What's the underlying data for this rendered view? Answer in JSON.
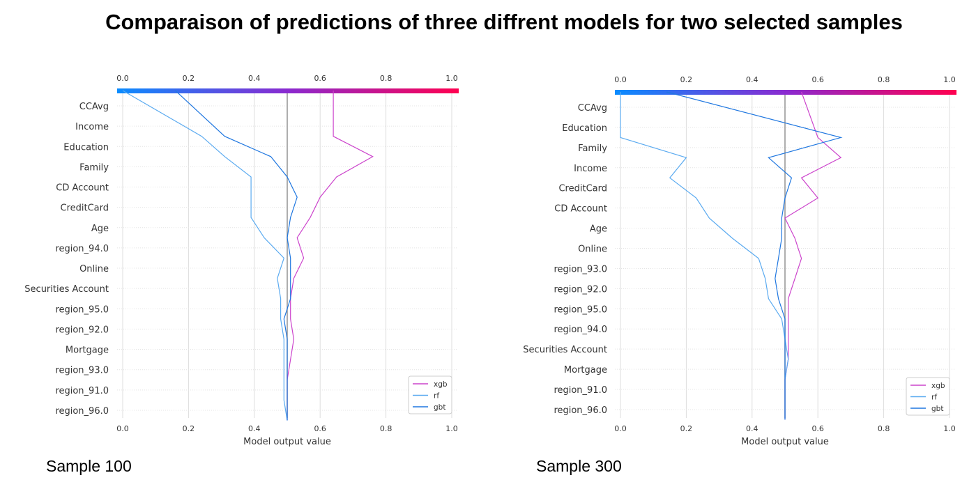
{
  "title": "Comparaison of predictions of three diffrent models for two selected samples",
  "samples": [
    {
      "label": "Sample 100"
    },
    {
      "label": "Sample 300"
    }
  ],
  "colors": {
    "xgb": "#cc44cc",
    "rf": "#5aaaf0",
    "gbt": "#1f77e0",
    "base_line": "#999999",
    "grid": "#dddddd",
    "colorbar_start": "#0a8cff",
    "colorbar_mid": "#8a2ad0",
    "colorbar_end": "#ff0050"
  },
  "chart_data": [
    {
      "type": "line",
      "subtype": "decision-plot",
      "xlabel": "Model output value",
      "xlim": [
        0.0,
        1.0
      ],
      "xticks": [
        "0.0",
        "0.2",
        "0.4",
        "0.6",
        "0.8",
        "1.0"
      ],
      "base_value": 0.5,
      "features": [
        "CCAvg",
        "Income",
        "Education",
        "Family",
        "CD Account",
        "CreditCard",
        "Age",
        "region_94.0",
        "Online",
        "Securities Account",
        "region_95.0",
        "region_92.0",
        "Mortgage",
        "region_93.0",
        "region_91.0",
        "region_96.0"
      ],
      "legend": [
        "xgb",
        "rf",
        "gbt"
      ],
      "legend_position": "lower-right",
      "series": [
        {
          "name": "xgb",
          "values": [
            0.5,
            0.5,
            0.5,
            0.5,
            0.51,
            0.52,
            0.51,
            0.51,
            0.52,
            0.55,
            0.53,
            0.57,
            0.6,
            0.65,
            0.76,
            0.64,
            0.64
          ]
        },
        {
          "name": "rf",
          "values": [
            0.5,
            0.5,
            0.49,
            0.49,
            0.49,
            0.49,
            0.48,
            0.48,
            0.47,
            0.49,
            0.43,
            0.39,
            0.39,
            0.39,
            0.31,
            0.24,
            0.0
          ]
        },
        {
          "name": "gbt",
          "values": [
            0.5,
            0.5,
            0.5,
            0.5,
            0.5,
            0.5,
            0.49,
            0.51,
            0.51,
            0.51,
            0.5,
            0.51,
            0.53,
            0.5,
            0.45,
            0.31,
            0.16
          ]
        }
      ]
    },
    {
      "type": "line",
      "subtype": "decision-plot",
      "xlabel": "Model output value",
      "xlim": [
        0.0,
        1.0
      ],
      "xticks": [
        "0.0",
        "0.2",
        "0.4",
        "0.6",
        "0.8",
        "1.0"
      ],
      "base_value": 0.5,
      "features": [
        "CCAvg",
        "Education",
        "Family",
        "Income",
        "CreditCard",
        "CD Account",
        "Age",
        "Online",
        "region_93.0",
        "region_92.0",
        "region_95.0",
        "region_94.0",
        "Securities Account",
        "Mortgage",
        "region_91.0",
        "region_96.0"
      ],
      "legend": [
        "xgb",
        "rf",
        "gbt"
      ],
      "legend_position": "lower-right",
      "series": [
        {
          "name": "xgb",
          "values": [
            0.5,
            0.5,
            0.5,
            0.5,
            0.51,
            0.51,
            0.51,
            0.51,
            0.53,
            0.55,
            0.53,
            0.5,
            0.6,
            0.55,
            0.67,
            0.6,
            0.55
          ]
        },
        {
          "name": "rf",
          "values": [
            0.5,
            0.5,
            0.5,
            0.5,
            0.51,
            0.5,
            0.49,
            0.45,
            0.44,
            0.42,
            0.34,
            0.27,
            0.23,
            0.15,
            0.2,
            0.0,
            0.0
          ]
        },
        {
          "name": "gbt",
          "values": [
            0.5,
            0.5,
            0.5,
            0.5,
            0.5,
            0.5,
            0.5,
            0.48,
            0.47,
            0.48,
            0.49,
            0.49,
            0.5,
            0.52,
            0.45,
            0.67,
            0.14
          ]
        }
      ]
    }
  ]
}
